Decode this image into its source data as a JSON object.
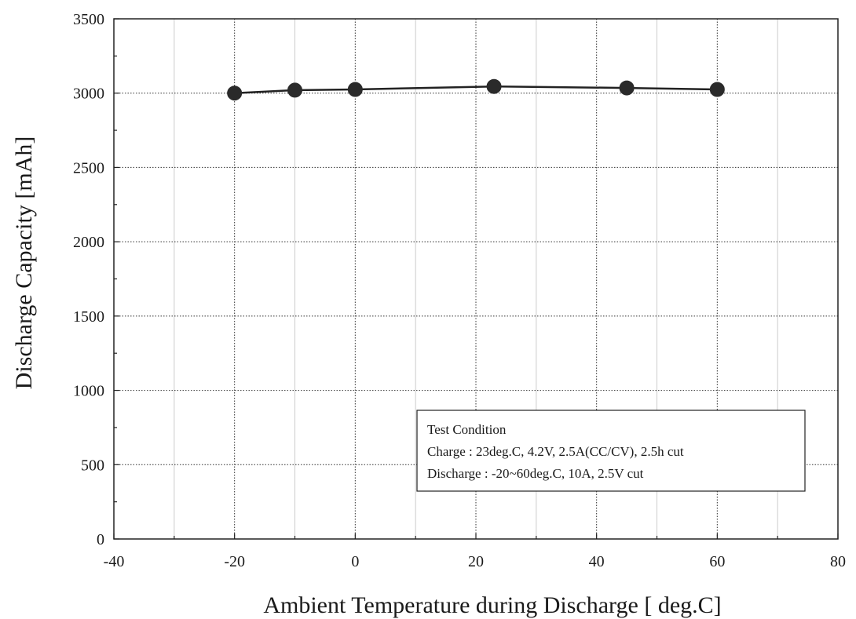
{
  "chart_data": {
    "type": "line",
    "title": "",
    "xlabel": "Ambient Temperature during Discharge [ deg.C]",
    "ylabel": "Discharge Capacity [mAh]",
    "xlim": [
      -40,
      80
    ],
    "ylim": [
      0,
      3500
    ],
    "xticks": [
      -40,
      -20,
      0,
      20,
      40,
      60,
      80
    ],
    "yticks": [
      0,
      500,
      1000,
      1500,
      2000,
      2500,
      3000,
      3500
    ],
    "grid": true,
    "series": [
      {
        "x": [
          -20,
          -10,
          0,
          23,
          45,
          60
        ],
        "y": [
          3000,
          3020,
          3025,
          3045,
          3035,
          3025
        ]
      }
    ],
    "annotation": {
      "lines": [
        "Test Condition",
        "Charge : 23deg.C, 4.2V, 2.5A(CC/CV), 2.5h cut",
        "Discharge : -20~60deg.C, 10A, 2.5V cut"
      ],
      "placement": "bottom-right"
    }
  }
}
